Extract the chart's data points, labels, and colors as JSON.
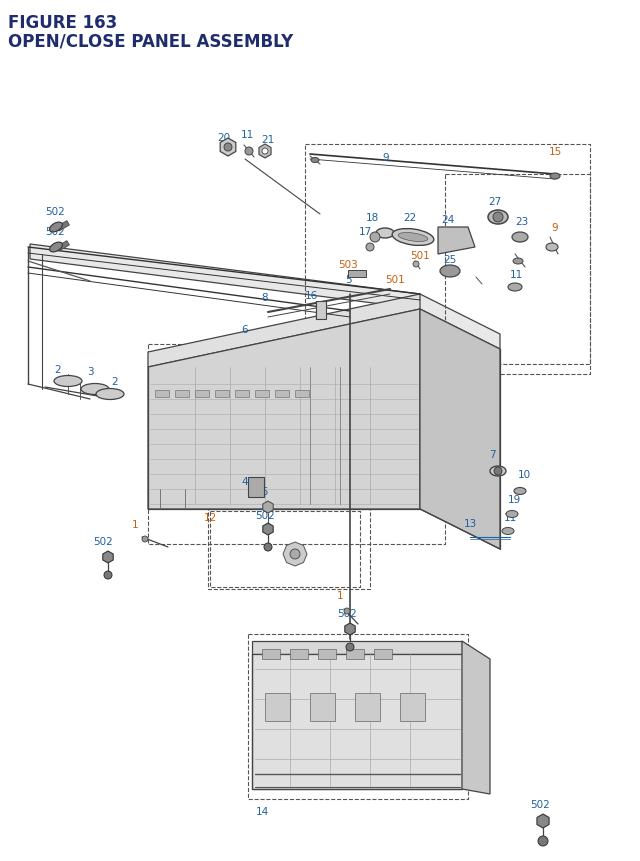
{
  "title_line1": "FIGURE 163",
  "title_line2": "OPEN/CLOSE PANEL ASSEMBLY",
  "bg_color": "#ffffff",
  "title_color": "#1f2d6e",
  "blue": "#2060a0",
  "orange": "#c86010",
  "dark": "#222222",
  "gray": "#666666",
  "light_gray": "#aaaaaa",
  "fig_width": 6.4,
  "fig_height": 8.62,
  "dpi": 100
}
